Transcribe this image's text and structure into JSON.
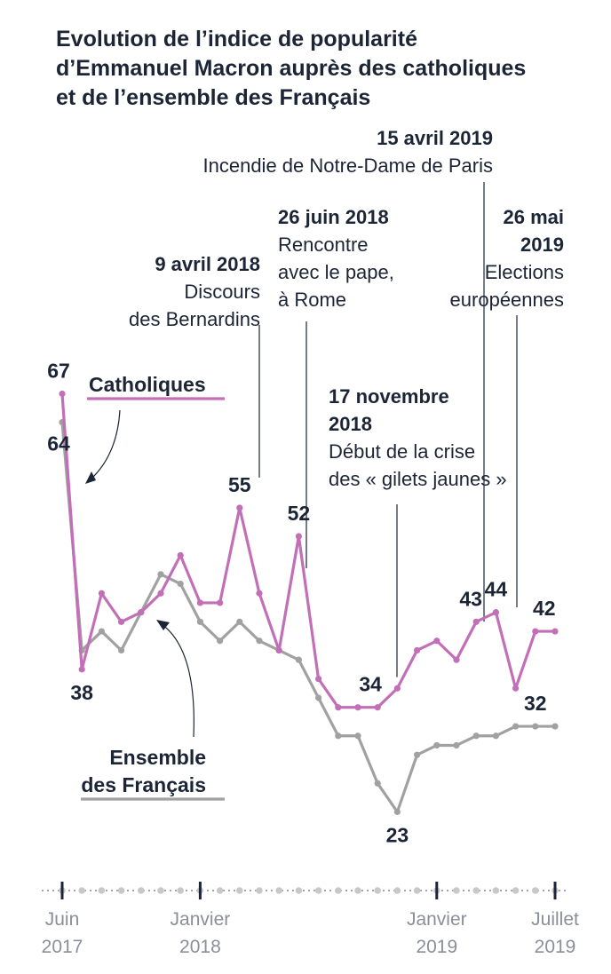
{
  "title": [
    "Evolution de l’indice de popularité",
    "d’Emmanuel Macron auprès des catholiques",
    "et de l’ensemble des Français"
  ],
  "colors": {
    "catholiques": "#c26fb7",
    "ensemble": "#a1a1a1",
    "text": "#1c2536",
    "tick_text": "#8a8f99"
  },
  "legend": {
    "catholiques": "Catholiques",
    "ensemble": [
      "Ensemble",
      "des Français"
    ]
  },
  "annotations": [
    {
      "id": "bernardins",
      "date": "9 avril 2018",
      "text": [
        "Discours",
        "des Bernardins"
      ]
    },
    {
      "id": "pape",
      "date": "26 juin 2018",
      "text": [
        "Rencontre",
        "avec le pape,",
        "à Rome"
      ]
    },
    {
      "id": "gilets",
      "date": [
        "17 novembre",
        "2018"
      ],
      "text": [
        "Début de la crise",
        "des « gilets jaunes »"
      ]
    },
    {
      "id": "notredame",
      "date": "15 avril 2019",
      "text": [
        "Incendie de Notre-Dame de Paris"
      ]
    },
    {
      "id": "europeennes",
      "date": [
        "26 mai",
        "2019"
      ],
      "text": [
        "Elections",
        "européennes"
      ]
    }
  ],
  "x_ticks": [
    {
      "label": [
        "Juin",
        "2017"
      ]
    },
    {
      "label": [
        "Janvier",
        "2018"
      ]
    },
    {
      "label": [
        "Janvier",
        "2019"
      ]
    },
    {
      "label": [
        "Juillet",
        "2019"
      ]
    }
  ],
  "chart_data": {
    "type": "line",
    "x": [
      "2017-06",
      "2017-07",
      "2017-08",
      "2017-09",
      "2017-10",
      "2017-11",
      "2017-12",
      "2018-01",
      "2018-02",
      "2018-03",
      "2018-04",
      "2018-05",
      "2018-06",
      "2018-07",
      "2018-08",
      "2018-09",
      "2018-10",
      "2018-11",
      "2018-12",
      "2019-01",
      "2019-02",
      "2019-03",
      "2019-04",
      "2019-05",
      "2019-06",
      "2019-07"
    ],
    "series": [
      {
        "name": "Catholiques",
        "values": [
          67,
          38,
          46,
          43,
          44,
          46,
          50,
          45,
          45,
          55,
          46,
          40,
          52,
          37,
          34,
          34,
          34,
          36,
          40,
          41,
          39,
          43,
          44,
          36,
          42,
          42
        ],
        "labels": {
          "0": "67",
          "1": "38",
          "9": "55",
          "12": "52",
          "16": "34",
          "21": "43",
          "22": "44",
          "24": "42"
        }
      },
      {
        "name": "Ensemble des Français",
        "values": [
          64,
          40,
          42,
          40,
          44,
          48,
          47,
          43,
          41,
          43,
          41,
          40,
          39,
          35,
          31,
          31,
          26,
          23,
          29,
          30,
          30,
          31,
          31,
          32,
          32,
          32
        ],
        "labels": {
          "0": "64",
          "17": "23",
          "24": "32"
        }
      }
    ],
    "ylim": [
      15,
      72
    ],
    "xlabel": "",
    "ylabel": ""
  }
}
